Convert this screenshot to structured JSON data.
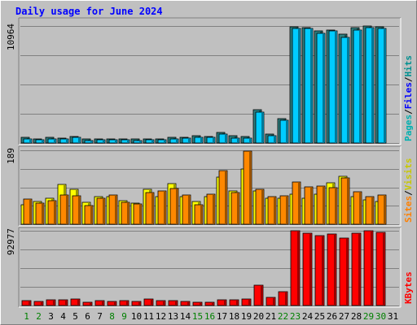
{
  "chart_data": {
    "type": "bar",
    "title": "Daily usage for June 2024",
    "categories": [
      "1",
      "2",
      "3",
      "4",
      "5",
      "6",
      "7",
      "8",
      "9",
      "10",
      "11",
      "12",
      "13",
      "14",
      "15",
      "16",
      "17",
      "18",
      "19",
      "20",
      "21",
      "22",
      "23",
      "24",
      "25",
      "26",
      "27",
      "28",
      "29",
      "30",
      "31"
    ],
    "weekend_days": [
      "1",
      "2",
      "8",
      "9",
      "15",
      "16",
      "22",
      "23",
      "29",
      "30"
    ],
    "weekend_color": "#008000",
    "panels": [
      {
        "id": "hits-files-pages",
        "scale_label": "10964",
        "ymax": 10964,
        "legend": [
          {
            "text": "Hits",
            "color": "#009090"
          },
          {
            "text": "/",
            "color": "#000000"
          },
          {
            "text": "Files",
            "color": "#0000ff"
          },
          {
            "text": "/",
            "color": "#000000"
          },
          {
            "text": "Pages",
            "color": "#00b0b0"
          }
        ],
        "series": [
          {
            "name": "Hits",
            "color": "#2d8080",
            "values": [
              500,
              400,
              500,
              450,
              600,
              350,
              400,
              350,
              400,
              350,
              400,
              400,
              500,
              550,
              650,
              600,
              1000,
              650,
              600,
              3100,
              800,
              2300,
              10900,
              10800,
              10500,
              10600,
              10200,
              10800,
              10950,
              10850,
              0
            ]
          },
          {
            "name": "Files",
            "color": "#00ccff",
            "values": [
              400,
              300,
              400,
              350,
              500,
              250,
              300,
              300,
              300,
              250,
              300,
              300,
              400,
              450,
              550,
              500,
              800,
              450,
              450,
              2900,
              700,
              2100,
              10700,
              10700,
              10300,
              10500,
              9900,
              10600,
              10800,
              10750,
              0
            ]
          }
        ]
      },
      {
        "id": "visits-sites",
        "scale_label": "189",
        "ymax": 189,
        "legend": [
          {
            "text": "Visits",
            "color": "#c8c800"
          },
          {
            "text": "/",
            "color": "#000000"
          },
          {
            "text": "Sites",
            "color": "#ff8000"
          }
        ],
        "series": [
          {
            "name": "Visits",
            "color": "#ffff00",
            "values": [
              50,
              58,
              66,
              102,
              90,
              56,
              70,
              70,
              61,
              53,
              89,
              70,
              103,
              71,
              58,
              70,
              121,
              85,
              142,
              85,
              66,
              66,
              77,
              66,
              77,
              105,
              123,
              70,
              62,
              58,
              0
            ]
          },
          {
            "name": "Sites",
            "color": "#ff8800",
            "values": [
              65,
              54,
              61,
              75,
              72,
              48,
              66,
              74,
              56,
              52,
              80,
              86,
              91,
              75,
              50,
              76,
              137,
              80,
              187,
              90,
              70,
              73,
              108,
              95,
              97,
              94,
              118,
              83,
              71,
              75,
              0
            ]
          }
        ]
      },
      {
        "id": "kbytes",
        "scale_label": "92977",
        "ymax": 92977,
        "legend": [
          {
            "text": "KBytes",
            "color": "#ff0000"
          }
        ],
        "series": [
          {
            "name": "KBytes",
            "color": "#ff0000",
            "values": [
              6000,
              5000,
              7000,
              7000,
              8000,
              4500,
              6000,
              5000,
              6500,
              5000,
              8000,
              6500,
              6000,
              5000,
              4500,
              4500,
              7500,
              7500,
              8500,
              25000,
              10000,
              17000,
              93000,
              90000,
              87000,
              89000,
              84000,
              90000,
              93000,
              90500,
              0
            ]
          }
        ]
      }
    ]
  }
}
